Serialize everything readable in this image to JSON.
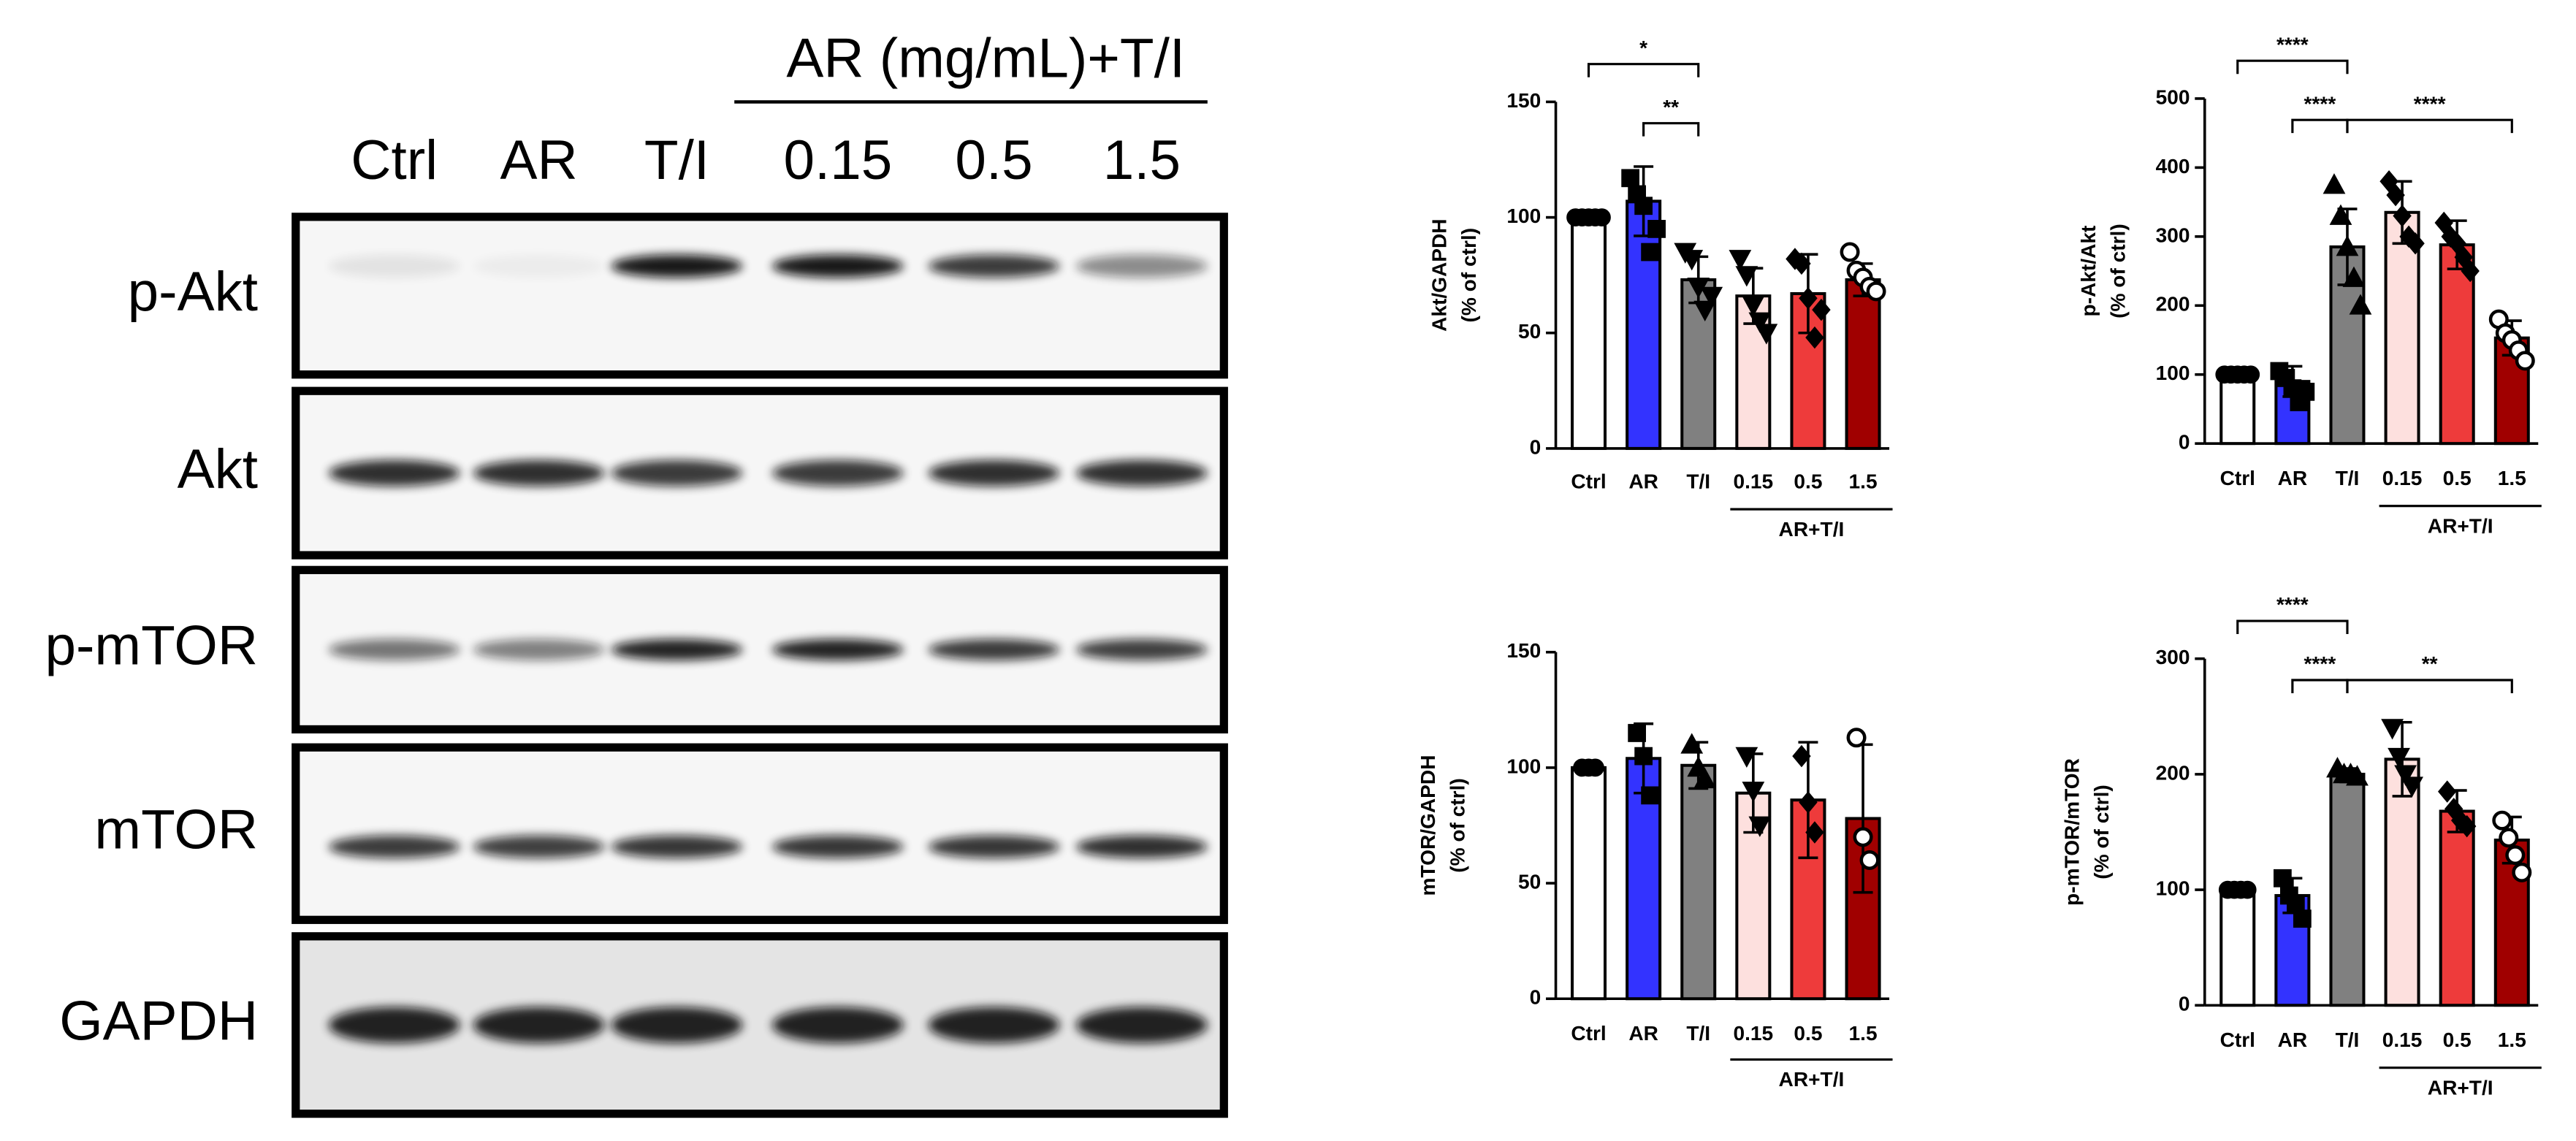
{
  "blot": {
    "title": "AR (mg/mL)+T/I",
    "lanes": [
      "Ctrl",
      "AR",
      "T/I",
      "0.15",
      "0.5",
      "1.5"
    ],
    "rows": [
      "p-Akt",
      "Akt",
      "p-mTOR",
      "mTOR",
      "GAPDH"
    ]
  },
  "chart_data": [
    {
      "type": "bar",
      "ylabel": [
        "Akt/GAPDH",
        "(% of ctrl)"
      ],
      "categories": [
        "Ctrl",
        "AR",
        "T/I",
        "0.15",
        "0.5",
        "1.5"
      ],
      "colors": [
        "#ffffff",
        "#3333ff",
        "#808080",
        "#fde0de",
        "#ee3b3b",
        "#a00000"
      ],
      "markers": [
        "circle",
        "square",
        "triangle-down",
        "triangle-down",
        "diamond",
        "circle-open"
      ],
      "values": [
        100,
        107,
        73,
        66,
        67,
        73
      ],
      "errors": [
        0,
        15,
        10,
        12,
        17,
        7
      ],
      "points": [
        [
          100,
          100,
          100,
          100,
          100
        ],
        [
          117,
          110,
          105,
          85,
          95
        ],
        [
          85,
          82,
          70,
          60,
          66
        ],
        [
          82,
          75,
          62,
          55,
          50
        ],
        [
          82,
          80,
          65,
          48,
          60
        ],
        [
          85,
          77,
          74,
          70,
          68
        ]
      ],
      "ylim": [
        0,
        150
      ],
      "yticks": [
        0,
        50,
        100,
        150
      ],
      "group": {
        "label": "AR+T/I",
        "from": "0.15",
        "to": "1.5"
      },
      "annotations": [
        {
          "label": "*",
          "pair": [
            "Ctrl",
            "T/I"
          ]
        },
        {
          "label": "**",
          "pair": [
            "AR",
            "T/I"
          ]
        }
      ]
    },
    {
      "type": "bar",
      "ylabel": [
        "p-Akt/Akt",
        "(% of ctrl)"
      ],
      "categories": [
        "Ctrl",
        "AR",
        "T/I",
        "0.15",
        "0.5",
        "1.5"
      ],
      "colors": [
        "#ffffff",
        "#3333ff",
        "#808080",
        "#fde0de",
        "#ee3b3b",
        "#a00000"
      ],
      "markers": [
        "circle",
        "square",
        "triangle",
        "diamond",
        "diamond",
        "circle-open"
      ],
      "values": [
        100,
        90,
        285,
        335,
        288,
        153
      ],
      "errors": [
        0,
        22,
        55,
        45,
        35,
        25
      ],
      "points": [
        [
          100,
          100,
          100,
          100,
          100
        ],
        [
          105,
          95,
          80,
          60,
          75
        ],
        [
          375,
          330,
          285,
          240,
          200
        ],
        [
          380,
          360,
          330,
          300,
          290
        ],
        [
          320,
          300,
          290,
          270,
          250
        ],
        [
          180,
          160,
          150,
          135,
          120
        ]
      ],
      "ylim": [
        0,
        500
      ],
      "yticks": [
        0,
        100,
        200,
        300,
        400,
        500
      ],
      "group": {
        "label": "AR+T/I",
        "from": "0.15",
        "to": "1.5"
      },
      "annotations": [
        {
          "label": "****",
          "pair": [
            "Ctrl",
            "T/I"
          ]
        },
        {
          "label": "****",
          "pair": [
            "AR",
            "T/I"
          ]
        },
        {
          "label": "****",
          "pair": [
            "T/I",
            "1.5"
          ]
        }
      ]
    },
    {
      "type": "bar",
      "ylabel": [
        "mTOR/GAPDH",
        "(% of ctrl)"
      ],
      "categories": [
        "Ctrl",
        "AR",
        "T/I",
        "0.15",
        "0.5",
        "1.5"
      ],
      "colors": [
        "#ffffff",
        "#3333ff",
        "#808080",
        "#fde0de",
        "#ee3b3b",
        "#a00000"
      ],
      "markers": [
        "circle",
        "square",
        "triangle",
        "triangle-down",
        "diamond",
        "circle-open"
      ],
      "values": [
        100,
        104,
        101,
        89,
        86,
        78
      ],
      "errors": [
        0,
        15,
        10,
        17,
        25,
        32
      ],
      "points": [
        [
          100,
          100,
          100
        ],
        [
          115,
          105,
          88
        ],
        [
          110,
          100,
          95
        ],
        [
          105,
          90,
          75
        ],
        [
          105,
          85,
          72
        ],
        [
          113,
          70,
          60
        ]
      ],
      "ylim": [
        0,
        150
      ],
      "yticks": [
        0,
        50,
        100,
        150
      ],
      "group": {
        "label": "AR+T/I",
        "from": "0.15",
        "to": "1.5"
      },
      "annotations": []
    },
    {
      "type": "bar",
      "ylabel": [
        "p-mTOR/mTOR",
        "(% of ctrl)"
      ],
      "categories": [
        "Ctrl",
        "AR",
        "T/I",
        "0.15",
        "0.5",
        "1.5"
      ],
      "colors": [
        "#ffffff",
        "#3333ff",
        "#808080",
        "#fde0de",
        "#ee3b3b",
        "#a00000"
      ],
      "markers": [
        "circle",
        "square",
        "triangle",
        "triangle-down",
        "diamond",
        "circle-open"
      ],
      "values": [
        100,
        95,
        200,
        213,
        168,
        143
      ],
      "errors": [
        0,
        15,
        5,
        32,
        18,
        20
      ],
      "points": [
        [
          100,
          100,
          100,
          100
        ],
        [
          110,
          95,
          88,
          75
        ],
        [
          205,
          200,
          200,
          198
        ],
        [
          240,
          215,
          200,
          190
        ],
        [
          185,
          170,
          160,
          155
        ],
        [
          160,
          145,
          130,
          115
        ]
      ],
      "ylim": [
        0,
        300
      ],
      "yticks": [
        0,
        100,
        200,
        300
      ],
      "group": {
        "label": "AR+T/I",
        "from": "0.15",
        "to": "1.5"
      },
      "annotations": [
        {
          "label": "****",
          "pair": [
            "Ctrl",
            "T/I"
          ]
        },
        {
          "label": "****",
          "pair": [
            "AR",
            "T/I"
          ]
        },
        {
          "label": "**",
          "pair": [
            "T/I",
            "1.5"
          ]
        }
      ]
    }
  ]
}
